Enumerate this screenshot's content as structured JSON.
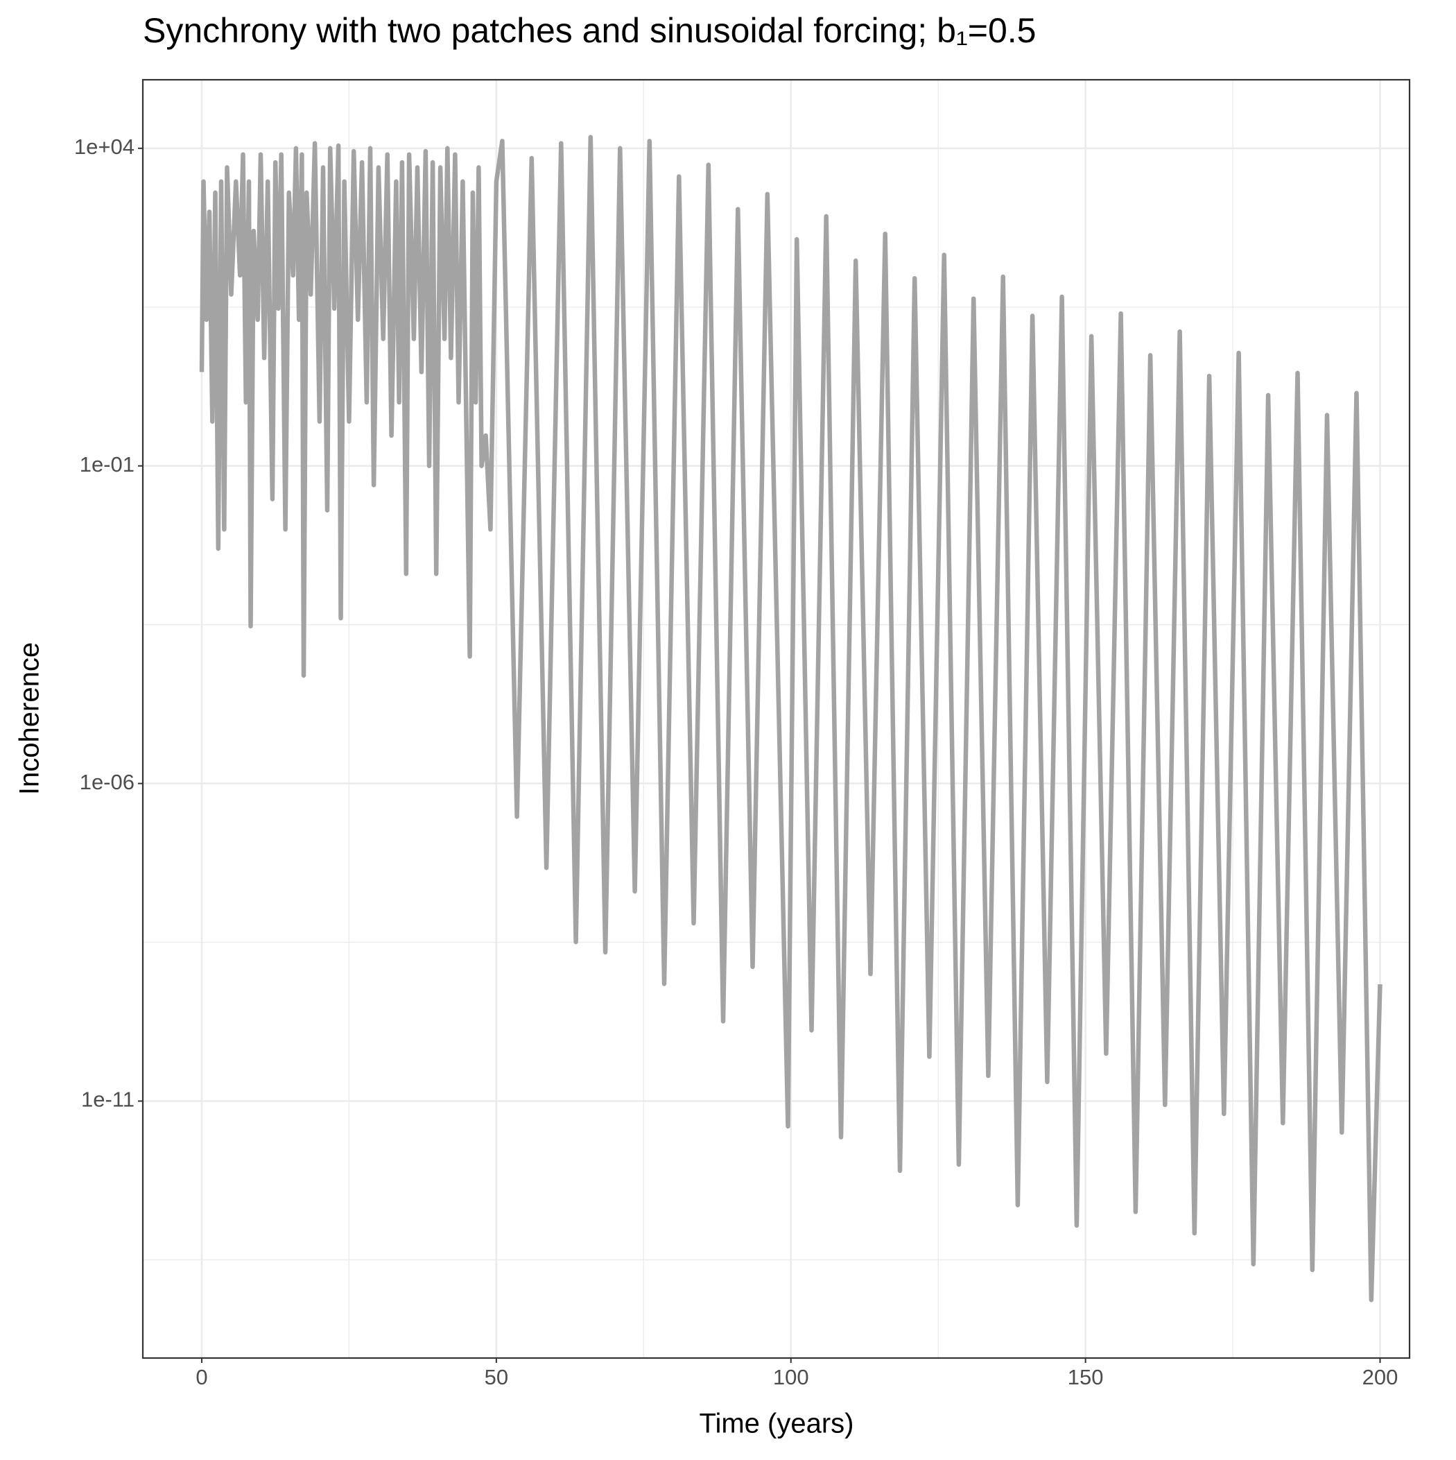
{
  "chart_data": {
    "type": "line",
    "title": "Synchrony with two patches and sinusoidal forcing; b₁=0.5",
    "x_label": "Time (years)",
    "y_label": "Incoherence",
    "y_scale": "log",
    "grid": true,
    "color": "#a3a3a3",
    "xlim": [
      -10,
      205
    ],
    "xticks": [
      0,
      50,
      100,
      150,
      200
    ],
    "x_minor_ticks": [
      25,
      75,
      125,
      175
    ],
    "ylim": [
      120000,
      9e-16
    ],
    "yticks": [
      {
        "value": 10000,
        "label": "1e+04"
      },
      {
        "value": 0.1,
        "label": "1e-01"
      },
      {
        "value": 1e-06,
        "label": "1e-06"
      },
      {
        "value": 1e-11,
        "label": "1e-11"
      }
    ],
    "y_minor_ticks": [
      31.62,
      0.0003162,
      3.162e-09,
      3.162e-14
    ],
    "x": [
      0,
      0.3,
      0.8,
      1.3,
      1.8,
      2.3,
      2.8,
      3.3,
      3.8,
      4.3,
      5,
      5.8,
      6.5,
      7,
      7.5,
      8,
      8.3,
      8.8,
      9.5,
      10,
      10.6,
      11.2,
      12,
      12.5,
      13,
      13.5,
      14.2,
      14.8,
      15.5,
      16,
      16.5,
      17,
      17.3,
      17.8,
      18.5,
      19.2,
      20,
      20.6,
      21.3,
      21.8,
      22.5,
      23.2,
      23.6,
      24.2,
      25,
      25.8,
      26.5,
      27.2,
      28,
      28.6,
      29.2,
      30,
      30.8,
      31.5,
      32.2,
      33,
      33.5,
      34,
      34.7,
      35.2,
      36,
      36.6,
      37.3,
      38,
      38.6,
      39.2,
      39.8,
      40.5,
      41.2,
      41.7,
      42.3,
      43,
      43.6,
      44.3,
      45.5,
      46,
      46.5,
      47,
      47.5,
      48.2,
      49,
      50,
      51,
      53.5,
      56,
      58.5,
      61,
      63.5,
      66,
      68.5,
      71,
      73.5,
      76,
      78.5,
      81,
      83.5,
      86,
      88.5,
      91,
      93.5,
      96,
      99.5,
      101,
      103.5,
      106,
      108.5,
      111,
      113.5,
      116,
      118.5,
      121,
      123.5,
      126,
      128.5,
      131,
      133.5,
      136,
      138.5,
      141,
      143.5,
      146,
      148.5,
      151,
      153.5,
      156,
      158.5,
      161,
      163.5,
      166,
      168.5,
      171,
      173.5,
      176,
      178.5,
      181,
      183.5,
      186,
      188.5,
      191,
      193.5,
      196,
      198.5,
      200
    ],
    "values": [
      3,
      3000,
      20,
      1000,
      0.5,
      2000,
      0.005,
      3000,
      0.01,
      5000,
      50,
      3000,
      100,
      8000,
      1,
      3000,
      0.0003,
      500,
      20,
      8000,
      5,
      3000,
      0.03,
      6000,
      30,
      8000,
      0.01,
      2000,
      100,
      10000,
      20,
      8000,
      5e-05,
      2000,
      50,
      12000,
      0.5,
      5000,
      0.02,
      10000,
      30,
      11000,
      0.0004,
      3000,
      0.5,
      9000,
      20,
      6000,
      1,
      10000,
      0.05,
      5000,
      10,
      8000,
      0.3,
      3000,
      1,
      6000,
      0.002,
      8000,
      10,
      5000,
      3,
      9000,
      0.1,
      6000,
      0.002,
      5000,
      10,
      10000,
      5,
      8000,
      1,
      3000,
      0.0001,
      2000,
      1,
      5000,
      0.1,
      0.3,
      0.01,
      3000,
      13000,
      3e-07,
      7000,
      4.7e-08,
      12000,
      3.2e-09,
      15000,
      2.2e-09,
      10000,
      2e-08,
      13000,
      7e-10,
      3600,
      6.3e-09,
      5500,
      1.8e-10,
      1100,
      1.3e-09,
      1900,
      4e-12,
      370,
      1.3e-10,
      850,
      2.7e-12,
      170,
      1e-09,
      450,
      8e-13,
      90,
      5e-11,
      210,
      1e-12,
      43,
      2.5e-11,
      95,
      2.3e-13,
      23,
      2e-11,
      46,
      1.1e-13,
      11,
      5.6e-11,
      25,
      1.8e-13,
      5.5,
      8.7e-12,
      13,
      8.3e-14,
      2.6,
      6.3e-12,
      6,
      2.7e-14,
      1.3,
      4.5e-12,
      2.9,
      2.2e-14,
      0.63,
      3.2e-12,
      1.4,
      7.4e-15,
      6.9e-10
    ]
  }
}
